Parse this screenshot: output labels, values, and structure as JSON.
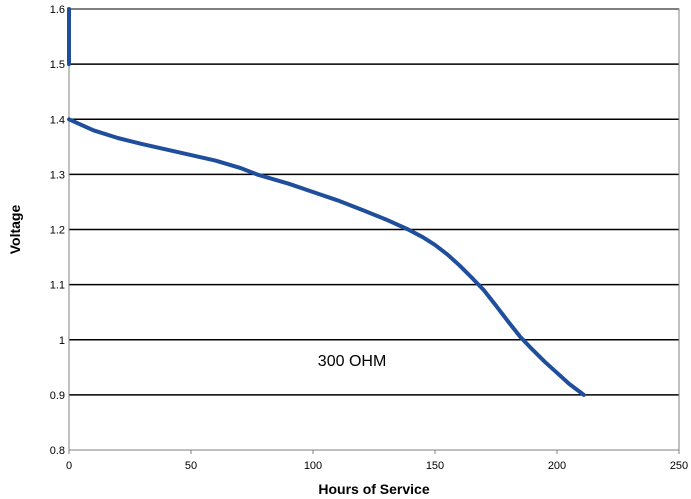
{
  "chart_data": {
    "type": "line",
    "title": "",
    "xlabel": "Hours of Service",
    "ylabel": "Voltage",
    "xlim": [
      0,
      250
    ],
    "ylim": [
      0.8,
      1.6
    ],
    "xticks": [
      0,
      50,
      100,
      150,
      200,
      250
    ],
    "xtick_labels": [
      "0",
      "50",
      "100",
      "150",
      "200",
      "250"
    ],
    "yticks": [
      0.8,
      0.9,
      1.0,
      1.1,
      1.2,
      1.3,
      1.4,
      1.5,
      1.6
    ],
    "ytick_labels": [
      "0.8",
      "0.9",
      "1",
      "1.1",
      "1.2",
      "1.3",
      "1.4",
      "1.5",
      "1.6"
    ],
    "grid": "horizontal",
    "annotation": {
      "text": "300 OHM",
      "x": 116,
      "y": 0.96
    },
    "series": [
      {
        "color": "#1f4e9c",
        "segments": [
          {
            "x": [
              0,
              0
            ],
            "y": [
              1.5,
              1.6
            ]
          },
          {
            "x": [
              0,
              5,
              10,
              20,
              30,
              40,
              50,
              60,
              70,
              77,
              90,
              100,
              110,
              120,
              130,
              139,
              145,
              150,
              155,
              160,
              165,
              170,
              175,
              180,
              185,
              190,
              195,
              200,
              205,
              211
            ],
            "y": [
              1.4,
              1.39,
              1.38,
              1.366,
              1.355,
              1.345,
              1.335,
              1.325,
              1.312,
              1.3,
              1.283,
              1.268,
              1.253,
              1.236,
              1.218,
              1.2,
              1.186,
              1.172,
              1.155,
              1.135,
              1.113,
              1.09,
              1.062,
              1.033,
              1.005,
              0.982,
              0.96,
              0.94,
              0.92,
              0.9
            ]
          }
        ]
      }
    ]
  }
}
